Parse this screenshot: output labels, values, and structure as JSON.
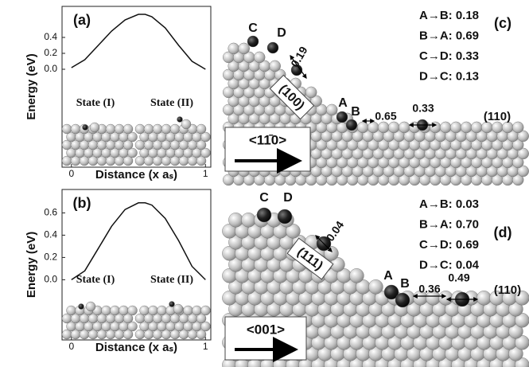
{
  "chart_data": [
    {
      "type": "line",
      "panel_label": "(a)",
      "ylabel": "Energy (eV)",
      "xlabel": "Distance (x aₛ)",
      "annotations": [
        "State (I)",
        "State (II)"
      ],
      "x": [
        0,
        0.1,
        0.2,
        0.3,
        0.4,
        0.5,
        0.55,
        0.6,
        0.7,
        0.8,
        0.9,
        1
      ],
      "series": [
        {
          "color": "#111111",
          "values": [
            0.02,
            0.12,
            0.3,
            0.48,
            0.62,
            0.69,
            0.69,
            0.66,
            0.52,
            0.3,
            0.1,
            0.0
          ]
        }
      ],
      "xlim": [
        -0.07,
        1.04
      ],
      "ylim": [
        -1.23,
        0.79
      ],
      "xticks": [
        0,
        1
      ],
      "yticks": [
        {
          "value": 0,
          "label": "0.0"
        },
        0.2,
        0.4
      ]
    },
    {
      "type": "line",
      "panel_label": "(b)",
      "ylabel": "Energy (eV)",
      "xlabel": "Distance (x aₛ)",
      "annotations": [
        "State (I)",
        "State (II)"
      ],
      "x": [
        0,
        0.1,
        0.2,
        0.3,
        0.4,
        0.5,
        0.55,
        0.6,
        0.7,
        0.8,
        0.9,
        1
      ],
      "series": [
        {
          "color": "#111111",
          "values": [
            0.0,
            0.08,
            0.28,
            0.48,
            0.63,
            0.69,
            0.69,
            0.67,
            0.55,
            0.35,
            0.12,
            0.0
          ]
        }
      ],
      "xlim": [
        -0.07,
        1.04
      ],
      "ylim": [
        -0.54,
        0.81
      ],
      "xticks": [
        0,
        1
      ],
      "yticks": [
        {
          "value": 0,
          "label": "0.0"
        },
        0.2,
        0.4,
        0.6
      ]
    }
  ],
  "panels": [
    {
      "label": "(c)",
      "barriers": [
        "A→B: 0.18",
        "B→A: 0.69",
        "C→D: 0.33",
        "D→C: 0.13"
      ],
      "sites": [
        "A",
        "B",
        "C",
        "D"
      ],
      "facet": "(100)",
      "direction": "<11̄0>",
      "surface": "(110)",
      "hops": [
        "0.19",
        "0.65",
        "0.33"
      ]
    },
    {
      "label": "(d)",
      "barriers": [
        "A→B: 0.03",
        "B→A: 0.70",
        "C→D: 0.69",
        "D→C: 0.04"
      ],
      "sites": [
        "A",
        "B",
        "C",
        "D"
      ],
      "facet": "(111)",
      "direction": "<001>",
      "surface": "(110)",
      "hops": [
        "0.04",
        "0.36",
        "0.49"
      ]
    }
  ]
}
